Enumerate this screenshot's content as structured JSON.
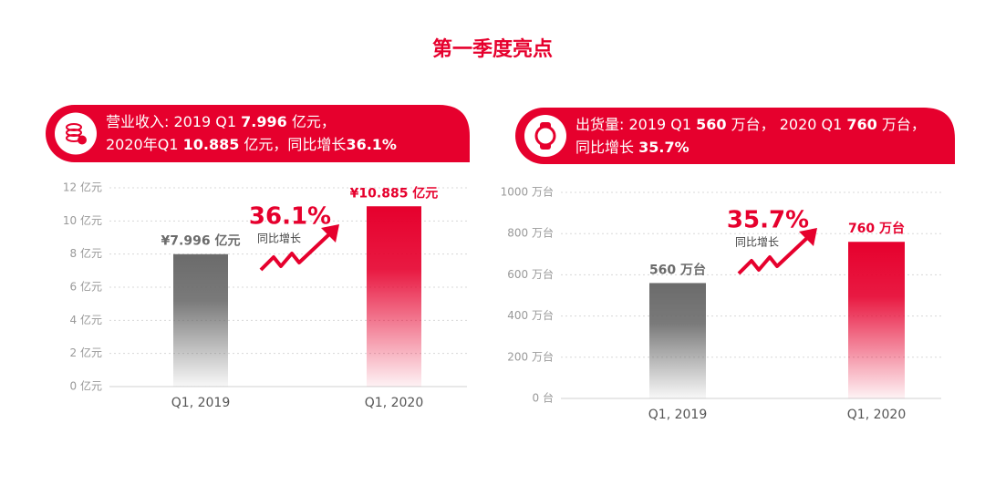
{
  "title": "第一季度亮点",
  "chart_data": [
    {
      "type": "bar",
      "header": [
        [
          {
            "text": "营业收入: 2019 Q1 ",
            "bold": false
          },
          {
            "text": "7.996",
            "bold": true
          },
          {
            "text": " 亿元，",
            "bold": false
          }
        ],
        [
          {
            "text": "2020年Q1 ",
            "bold": false
          },
          {
            "text": "10.885",
            "bold": true
          },
          {
            "text": " 亿元，同比增长",
            "bold": false
          },
          {
            "text": "36.1%",
            "bold": true
          }
        ]
      ],
      "categories": [
        "Q1, 2019",
        "Q1, 2020"
      ],
      "values": [
        7.996,
        10.885
      ],
      "value_labels": [
        "¥7.996 亿元",
        "¥10.885 亿元"
      ],
      "colors": [
        "#6b6b6b",
        "#e6002d"
      ],
      "ylim": [
        0,
        12
      ],
      "yticks": [
        {
          "value": 0,
          "label": "0 亿元"
        },
        {
          "value": 2,
          "label": "2 亿元"
        },
        {
          "value": 4,
          "label": "4 亿元"
        },
        {
          "value": 6,
          "label": "6 亿元"
        },
        {
          "value": 8,
          "label": "8 亿元"
        },
        {
          "value": 10,
          "label": "10 亿元"
        },
        {
          "value": 12,
          "label": "12 亿元"
        }
      ],
      "grid": true,
      "annotation": {
        "value": "36.1%",
        "text": "同比增长"
      }
    },
    {
      "type": "bar",
      "header": [
        [
          {
            "text": "出货量: 2019 Q1 ",
            "bold": false
          },
          {
            "text": "560",
            "bold": true
          },
          {
            "text": " 万台， 2020 Q1 ",
            "bold": false
          },
          {
            "text": "760",
            "bold": true
          },
          {
            "text": " 万台，",
            "bold": false
          }
        ],
        [
          {
            "text": "同比增长 ",
            "bold": false
          },
          {
            "text": "35.7%",
            "bold": true
          }
        ]
      ],
      "categories": [
        "Q1, 2019",
        "Q1, 2020"
      ],
      "values": [
        560,
        760
      ],
      "value_labels": [
        "560 万台",
        "760 万台"
      ],
      "colors": [
        "#6b6b6b",
        "#e6002d"
      ],
      "ylim": [
        0,
        1000
      ],
      "yticks": [
        {
          "value": 0,
          "label": "0 台"
        },
        {
          "value": 200,
          "label": "200 万台"
        },
        {
          "value": 400,
          "label": "400 万台"
        },
        {
          "value": 600,
          "label": "600 万台"
        },
        {
          "value": 800,
          "label": "800 万台"
        },
        {
          "value": 1000,
          "label": "1000 万台"
        }
      ],
      "grid": true,
      "annotation": {
        "value": "35.7%",
        "text": "同比增长"
      }
    }
  ]
}
